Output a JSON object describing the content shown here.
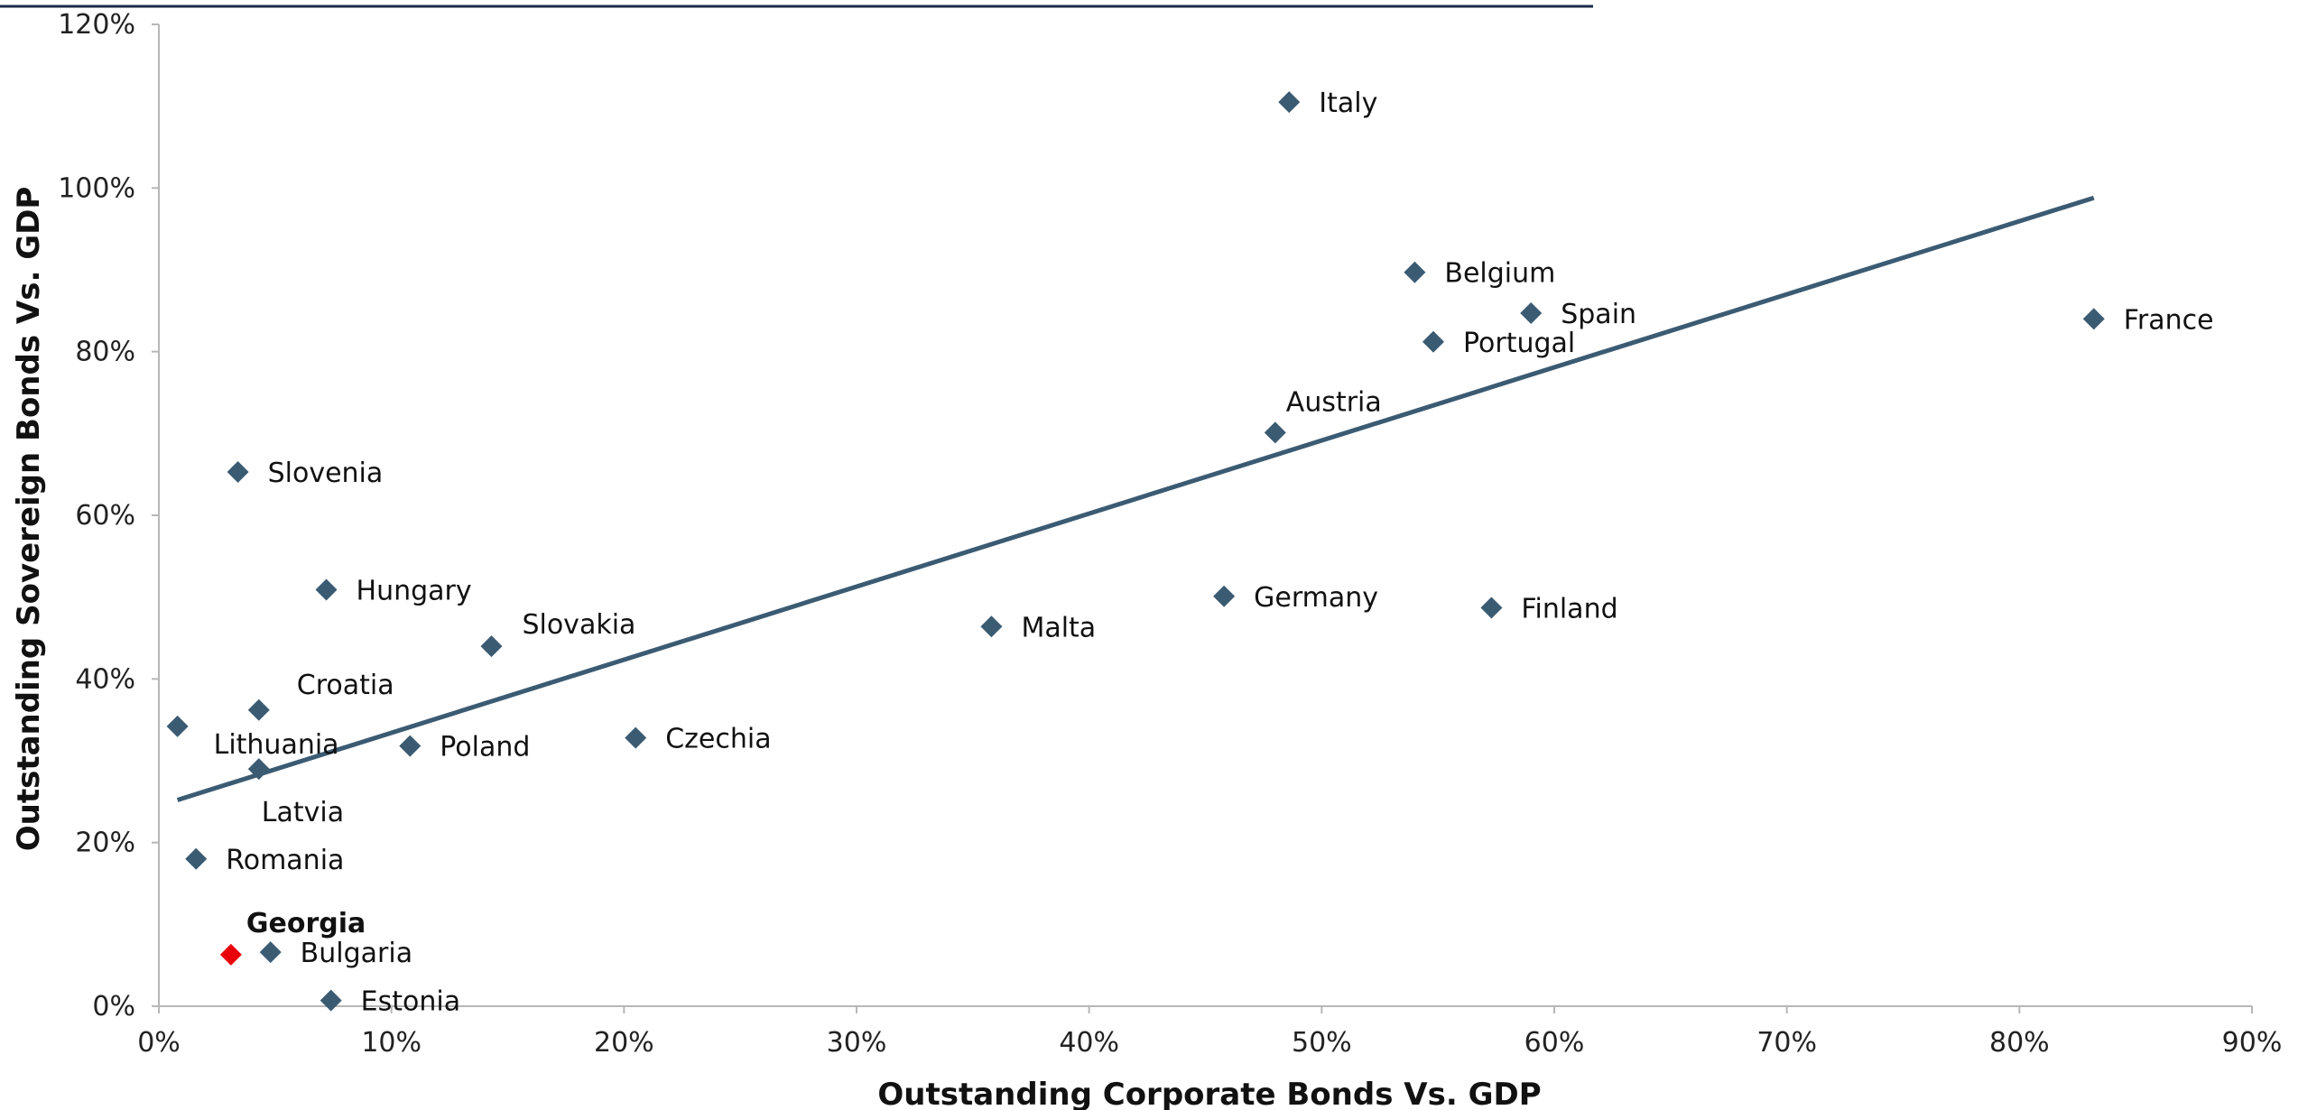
{
  "chart_data": {
    "type": "scatter",
    "title": "",
    "xlabel": "Outstanding Corporate Bonds Vs. GDP",
    "ylabel": "Outstanding Sovereign Bonds Vs. GDP",
    "xlim": [
      0,
      0.9
    ],
    "ylim": [
      0,
      1.2
    ],
    "x_ticks": [
      "0%",
      "10%",
      "20%",
      "30%",
      "40%",
      "50%",
      "60%",
      "70%",
      "80%",
      "90%"
    ],
    "y_ticks": [
      "0%",
      "20%",
      "40%",
      "60%",
      "80%",
      "100%",
      "120%"
    ],
    "grid": false,
    "legend": "none",
    "colors": {
      "default": "#3b5b73",
      "highlight": "#e8000b",
      "trendline": "#3b5b73"
    },
    "points": [
      {
        "label": "Italy",
        "x": 0.486,
        "y": 1.105
      },
      {
        "label": "Belgium",
        "x": 0.54,
        "y": 0.897
      },
      {
        "label": "Spain",
        "x": 0.59,
        "y": 0.847
      },
      {
        "label": "France",
        "x": 0.832,
        "y": 0.84
      },
      {
        "label": "Portugal",
        "x": 0.548,
        "y": 0.812
      },
      {
        "label": "Austria",
        "x": 0.48,
        "y": 0.701
      },
      {
        "label": "Slovenia",
        "x": 0.034,
        "y": 0.653
      },
      {
        "label": "Hungary",
        "x": 0.072,
        "y": 0.509
      },
      {
        "label": "Germany",
        "x": 0.458,
        "y": 0.501
      },
      {
        "label": "Finland",
        "x": 0.573,
        "y": 0.487
      },
      {
        "label": "Malta",
        "x": 0.358,
        "y": 0.464
      },
      {
        "label": "Slovakia",
        "x": 0.143,
        "y": 0.44
      },
      {
        "label": "Croatia",
        "x": 0.043,
        "y": 0.362
      },
      {
        "label": "Lithuania",
        "x": 0.008,
        "y": 0.342
      },
      {
        "label": "Czechia",
        "x": 0.205,
        "y": 0.328
      },
      {
        "label": "Poland",
        "x": 0.108,
        "y": 0.318
      },
      {
        "label": "Latvia",
        "x": 0.043,
        "y": 0.29
      },
      {
        "label": "Romania",
        "x": 0.016,
        "y": 0.18
      },
      {
        "label": "Bulgaria",
        "x": 0.048,
        "y": 0.066
      },
      {
        "label": "Georgia",
        "x": 0.031,
        "y": 0.063,
        "highlight": true
      },
      {
        "label": "Estonia",
        "x": 0.074,
        "y": 0.007
      }
    ],
    "trendline": {
      "x": [
        0.008,
        0.832
      ],
      "y": [
        0.252,
        0.988
      ]
    }
  }
}
